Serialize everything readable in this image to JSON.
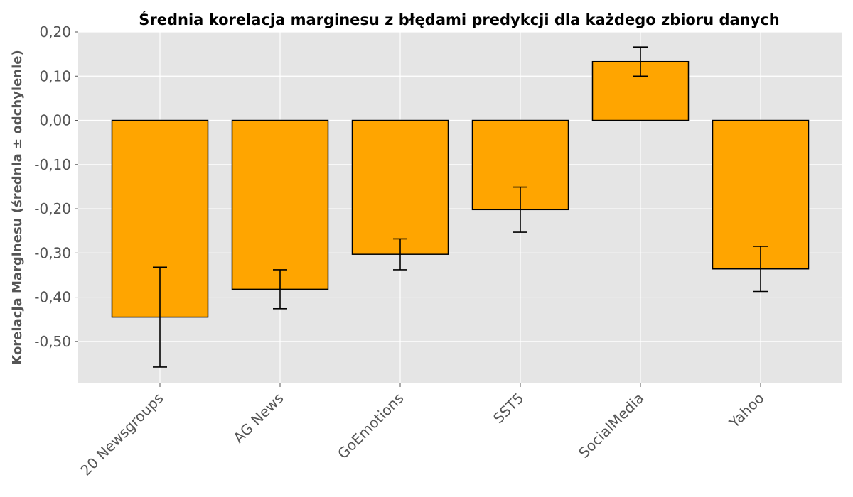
{
  "chart_data": {
    "type": "bar",
    "title": "Średnia korelacja marginesu z błędami predykcji dla każdego zbioru danych",
    "xlabel": "",
    "ylabel": "Korelacja Marginesu (średnia ± odchylenie)",
    "categories": [
      "20 Newsgroups",
      "AG News",
      "GoEmotions",
      "SST5",
      "SocialMedia",
      "Yahoo"
    ],
    "values": [
      -0.445,
      -0.382,
      -0.303,
      -0.202,
      0.133,
      -0.336
    ],
    "errors": [
      0.113,
      0.044,
      0.035,
      0.051,
      0.033,
      0.051
    ],
    "ylim": [
      -0.595,
      0.2
    ],
    "yticks": [
      0.2,
      0.1,
      0.0,
      -0.1,
      -0.2,
      -0.3,
      -0.4,
      -0.5
    ],
    "ytick_labels": [
      "0,20",
      "0,10",
      "0,00",
      "-0,10",
      "-0,20",
      "-0,30",
      "-0,40",
      "-0,50"
    ],
    "grid": true,
    "bar_color": "#ffa500",
    "background_color": "#e5e5e5"
  }
}
